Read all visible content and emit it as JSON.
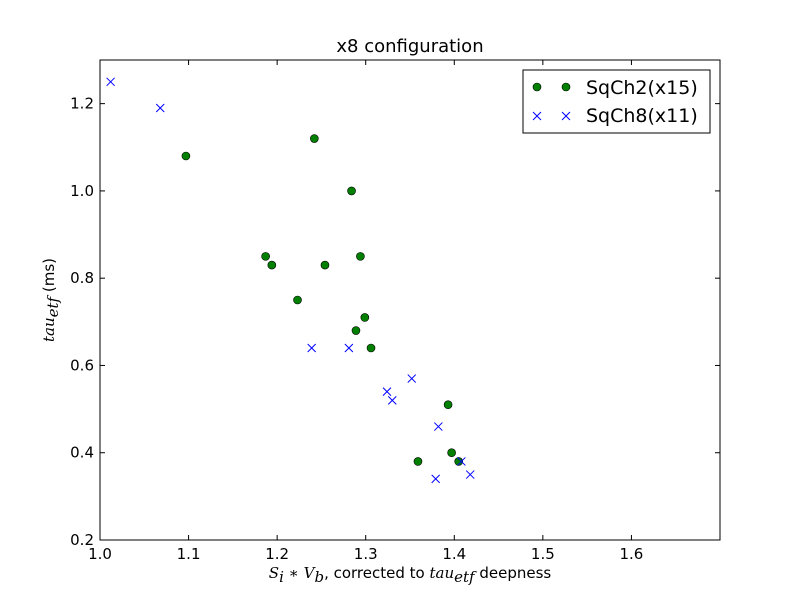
{
  "chart_data": {
    "type": "scatter",
    "title": "x8 configuration",
    "xlabel": "S_i * V_b, corrected to tau_etf deepness",
    "ylabel": "tau_etf (ms)",
    "xlim": [
      1.0,
      1.7
    ],
    "ylim": [
      0.2,
      1.3
    ],
    "x_ticks": [
      1.0,
      1.1,
      1.2,
      1.3,
      1.4,
      1.5,
      1.6
    ],
    "x_tick_labels": [
      "1.0",
      "1.1",
      "1.2",
      "1.3",
      "1.4",
      "1.5",
      "1.6"
    ],
    "y_ticks": [
      0.2,
      0.4,
      0.6,
      0.8,
      1.0,
      1.2
    ],
    "y_tick_labels": [
      "0.2",
      "0.4",
      "0.6",
      "0.8",
      "1.0",
      "1.2"
    ],
    "legend_position": "top-right",
    "series": [
      {
        "name": "SqCh2(x15)",
        "marker": "circle",
        "color": "#007f00",
        "points": [
          [
            1.097,
            1.08
          ],
          [
            1.242,
            1.12
          ],
          [
            1.284,
            1.0
          ],
          [
            1.187,
            0.85
          ],
          [
            1.194,
            0.83
          ],
          [
            1.254,
            0.83
          ],
          [
            1.294,
            0.85
          ],
          [
            1.223,
            0.75
          ],
          [
            1.299,
            0.71
          ],
          [
            1.289,
            0.68
          ],
          [
            1.306,
            0.64
          ],
          [
            1.393,
            0.51
          ],
          [
            1.397,
            0.4
          ],
          [
            1.405,
            0.38
          ],
          [
            1.359,
            0.38
          ]
        ]
      },
      {
        "name": "SqCh8(x11)",
        "marker": "x",
        "color": "#0000ff",
        "points": [
          [
            1.012,
            1.25
          ],
          [
            1.068,
            1.19
          ],
          [
            1.239,
            0.64
          ],
          [
            1.281,
            0.64
          ],
          [
            1.324,
            0.54
          ],
          [
            1.33,
            0.52
          ],
          [
            1.352,
            0.57
          ],
          [
            1.382,
            0.46
          ],
          [
            1.379,
            0.34
          ],
          [
            1.418,
            0.35
          ],
          [
            1.408,
            0.38
          ]
        ]
      }
    ]
  }
}
